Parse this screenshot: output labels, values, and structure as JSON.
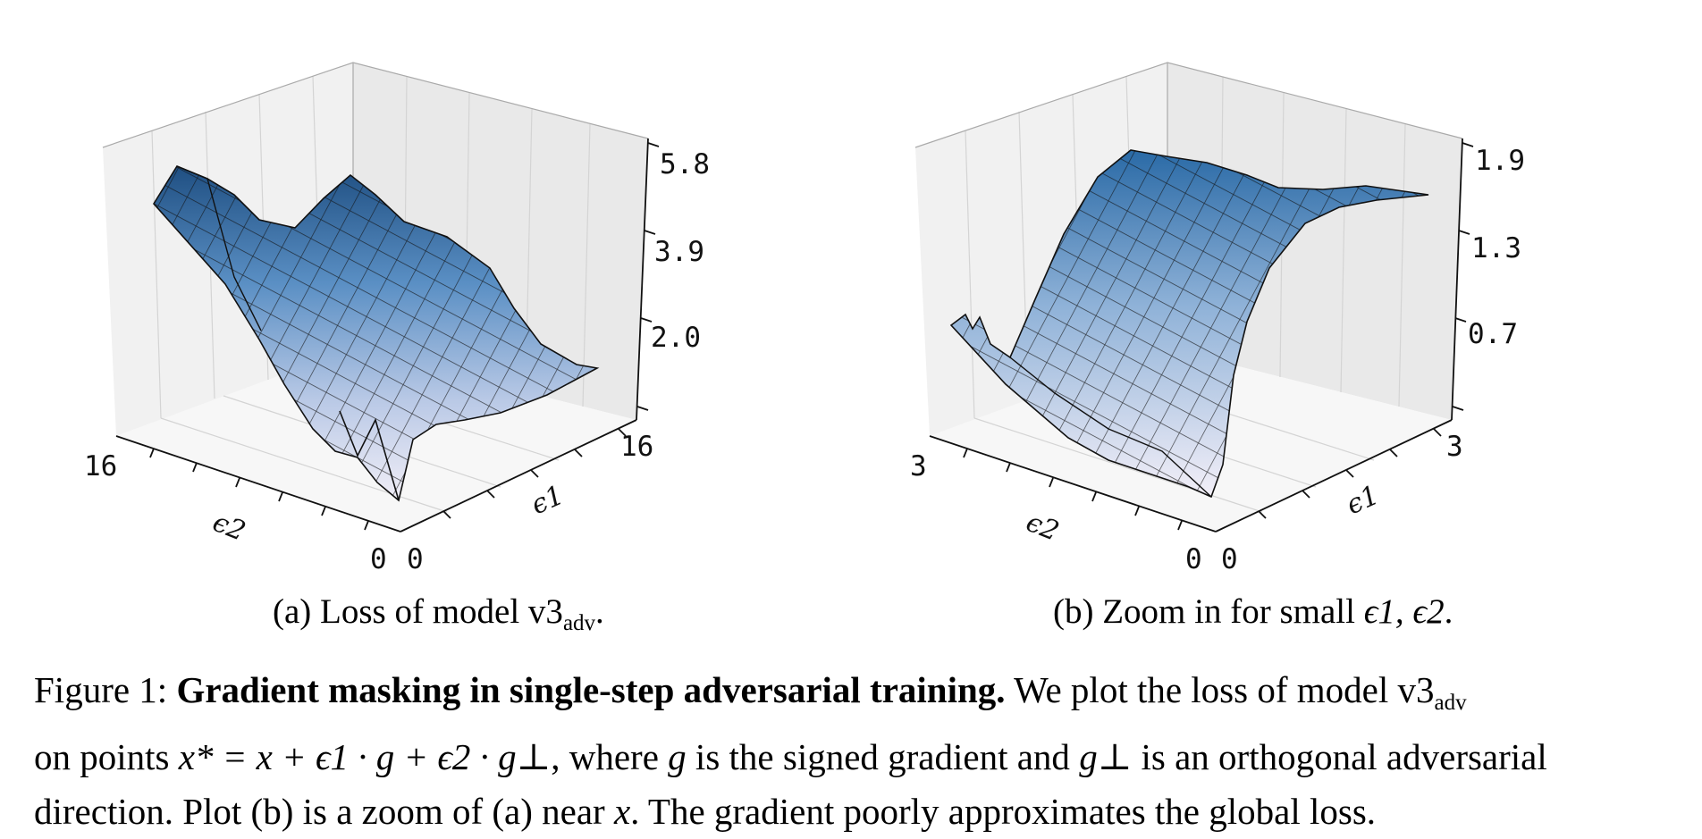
{
  "plots": [
    {
      "z_ticks": [
        "5.8",
        "3.9",
        "2.0"
      ],
      "e2_ticks": [
        "16",
        "0"
      ],
      "e1_ticks": [
        "0",
        "16"
      ],
      "e2_label": "ϵ2",
      "e1_label": "ϵ1",
      "caption_prefix": "(a) Loss of model v3",
      "caption_sub": "adv",
      "caption_suffix": "."
    },
    {
      "z_ticks": [
        "1.9",
        "1.3",
        "0.7"
      ],
      "e2_ticks": [
        "3",
        "0"
      ],
      "e1_ticks": [
        "0",
        "3"
      ],
      "e2_label": "ϵ2",
      "e1_label": "ϵ1",
      "caption_prefix": "(b) Zoom in for small ",
      "caption_math": "ϵ1, ϵ2",
      "caption_suffix": "."
    }
  ],
  "caption": {
    "figure_label": "Figure 1:",
    "bold_title": "Gradient masking in single-step adversarial training.",
    "line1_rest": "We plot the loss of model v3",
    "line1_sub": "adv",
    "line2_a": "on points ",
    "line2_math": "x* = x + ϵ1 · g + ϵ2 · g⊥",
    "line2_b": ", where ",
    "line2_g": "g",
    "line2_c": " is the signed gradient and ",
    "line2_gperp": "g⊥",
    "line2_d": " is an orthogonal adversarial",
    "line3_a": "direction. Plot (b) is a zoom of (a) near ",
    "line3_x": "x",
    "line3_b": ". The gradient poorly approximates the global loss."
  }
}
